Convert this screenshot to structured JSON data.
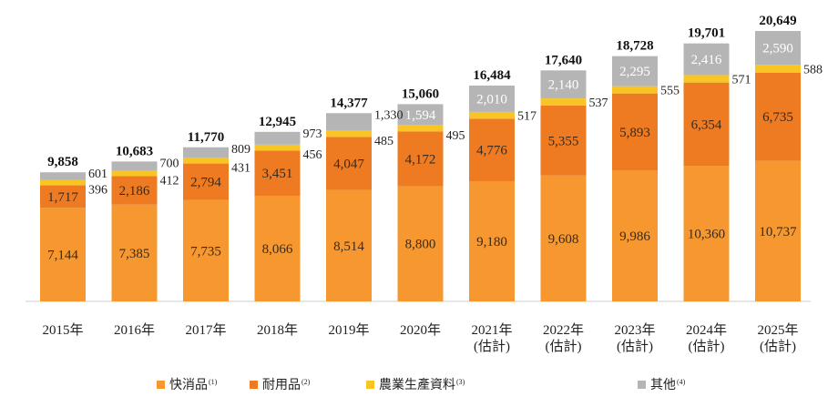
{
  "chart_data": {
    "type": "bar",
    "stacked": true,
    "title": "",
    "xlabel": "",
    "ylabel": "",
    "ylim": [
      0,
      21000
    ],
    "grid": false,
    "legend_position": "bottom",
    "categories": [
      [
        "2015年"
      ],
      [
        "2016年"
      ],
      [
        "2017年"
      ],
      [
        "2018年"
      ],
      [
        "2019年"
      ],
      [
        "2020年"
      ],
      [
        "2021年",
        "(估計)"
      ],
      [
        "2022年",
        "(估計)"
      ],
      [
        "2023年",
        "(估計)"
      ],
      [
        "2024年",
        "(估計)"
      ],
      [
        "2025年",
        "(估計)"
      ]
    ],
    "series": [
      {
        "name": "快消品",
        "note": "(1)",
        "color": "#F6982F",
        "values": [
          7144,
          7385,
          7735,
          8066,
          8514,
          8800,
          9180,
          9608,
          9986,
          10360,
          10737
        ],
        "labels": [
          "7,144",
          "7,385",
          "7,735",
          "8,066",
          "8,514",
          "8,800",
          "9,180",
          "9,608",
          "9,986",
          "10,360",
          "10,737"
        ]
      },
      {
        "name": "耐用品",
        "note": "(2)",
        "color": "#EE7B22",
        "values": [
          1717,
          2186,
          2794,
          3451,
          4047,
          4172,
          4776,
          5355,
          5893,
          6354,
          6735
        ],
        "labels": [
          "1,717",
          "2,186",
          "2,794",
          "3,451",
          "4,047",
          "4,172",
          "4,776",
          "5,355",
          "5,893",
          "6,354",
          "6,735"
        ]
      },
      {
        "name": "農業生產資料",
        "note": "(3)",
        "color": "#F9C525",
        "values": [
          396,
          412,
          431,
          456,
          485,
          495,
          517,
          537,
          555,
          571,
          588
        ],
        "labels": [
          "396",
          "412",
          "431",
          "456",
          "485",
          "495",
          "517",
          "537",
          "555",
          "571",
          "588"
        ]
      },
      {
        "name": "其他",
        "note": "(4)",
        "color": "#B5B5B6",
        "values": [
          601,
          700,
          809,
          973,
          1330,
          1594,
          2010,
          2140,
          2295,
          2416,
          2590
        ],
        "labels": [
          "601",
          "700",
          "809",
          "973",
          "1,330",
          "1,594",
          "2,010",
          "2,140",
          "2,295",
          "2,416",
          "2,590"
        ]
      }
    ],
    "totals": [
      9858,
      10683,
      11770,
      12945,
      14377,
      15060,
      16484,
      17640,
      18728,
      19701,
      20649
    ],
    "total_labels": [
      "9,858",
      "10,683",
      "11,770",
      "12,945",
      "14,377",
      "15,060",
      "16,484",
      "17,640",
      "18,728",
      "19,701",
      "20,649"
    ]
  }
}
